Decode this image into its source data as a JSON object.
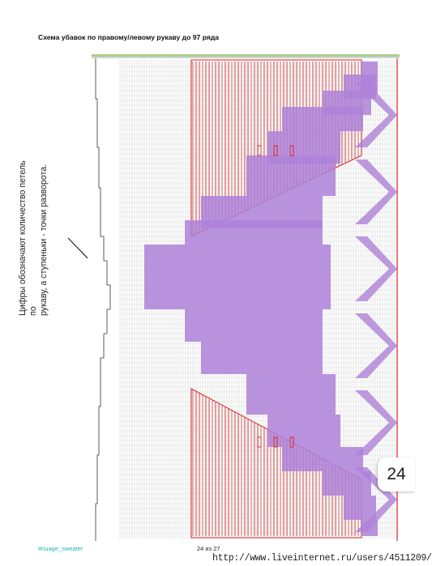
{
  "title": "Схема убавок по правому/левому  рукаву до 97 ряда",
  "note": {
    "line1": "Цифры обозначают количество петель по",
    "line2": "рукаву, а ступеньки - точки разворота."
  },
  "page_badge": "24",
  "footer": {
    "hashtag": "#nuage_sweater",
    "page": "24 из 27"
  },
  "watermark": "http://www.liveinternet.ru/users/4511209/",
  "colors": {
    "red": "#d81e1e",
    "purple": "#b07fe0",
    "grid": "#9a9a9a",
    "accent_teal": "#1fb5ad"
  }
}
